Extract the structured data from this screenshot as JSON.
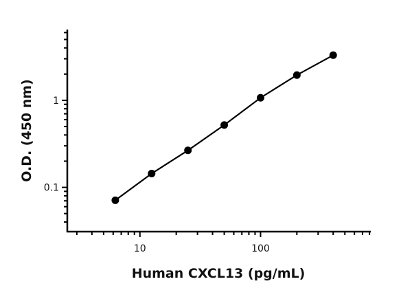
{
  "chart_data": {
    "type": "line",
    "title": "",
    "xlabel": "Human CXCL13 (pg/mL)",
    "ylabel": "O.D. (450 nm)",
    "xscale": "log",
    "yscale": "log",
    "xlim": [
      2.5,
      820
    ],
    "ylim": [
      0.031,
      6.5
    ],
    "x_ticks": [
      {
        "value": 10,
        "label": "10"
      },
      {
        "value": 100,
        "label": "100"
      }
    ],
    "y_ticks": [
      {
        "value": 0.1,
        "label": "0.1"
      },
      {
        "value": 1,
        "label": "1"
      }
    ],
    "grid": false,
    "legend": "none",
    "series": [
      {
        "x": [
          6.25,
          12.5,
          25,
          50,
          100,
          200,
          400
        ],
        "y": [
          0.071,
          0.144,
          0.266,
          0.52,
          1.07,
          1.95,
          3.3
        ],
        "color": "#000000",
        "marker": "circle"
      }
    ]
  }
}
